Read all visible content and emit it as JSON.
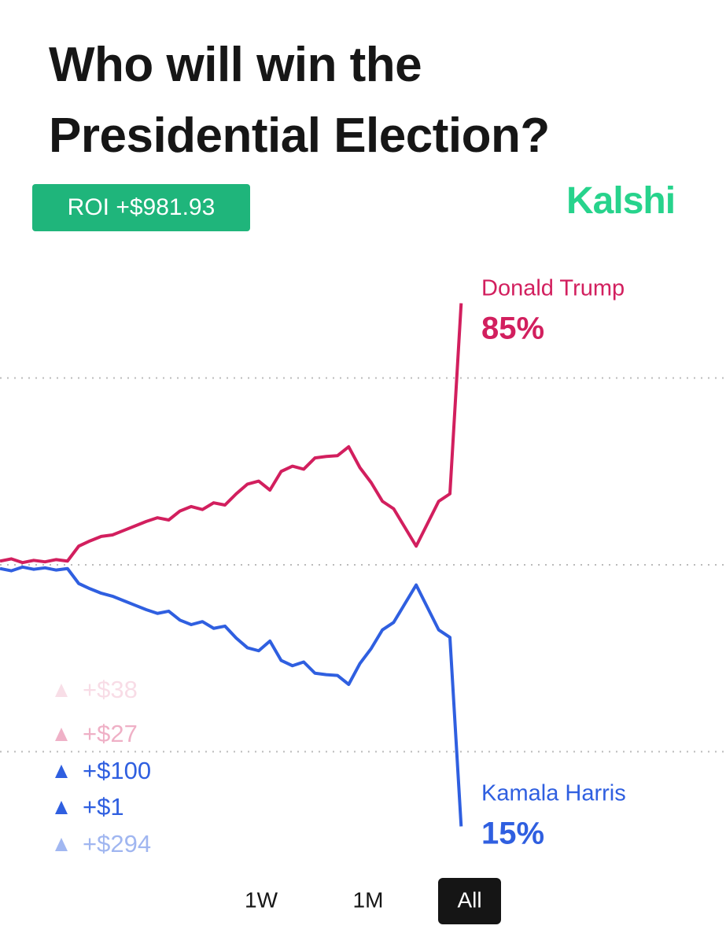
{
  "header": {
    "title": "Who will win the Presidential Election?",
    "badge": "ROI +$981.93",
    "brand": "Kalshi"
  },
  "chart_data": {
    "type": "line",
    "ylim": [
      10,
      90
    ],
    "gridlines": [
      25,
      50,
      75
    ],
    "grid": true,
    "series": [
      {
        "name": "Donald Trump",
        "color": "#d21f5e",
        "values": [
          50.5,
          50.8,
          50.3,
          50.6,
          50.4,
          50.7,
          50.5,
          52.5,
          53.2,
          53.8,
          54.0,
          54.6,
          55.2,
          55.8,
          56.3,
          56.0,
          57.2,
          57.8,
          57.4,
          58.3,
          58.0,
          59.5,
          60.8,
          61.2,
          60.0,
          62.5,
          63.2,
          62.8,
          64.3,
          64.5,
          64.6,
          65.8,
          63.0,
          61.0,
          58.5,
          57.5,
          55.0,
          52.5,
          55.5,
          58.5,
          59.5,
          85
        ],
        "value_labels": [
          null,
          null,
          null,
          null,
          null,
          null,
          null,
          null,
          null,
          null,
          null,
          null,
          null,
          null,
          null,
          null,
          null,
          null,
          null,
          null,
          null,
          null,
          null,
          null,
          null,
          null,
          null,
          null,
          null,
          null,
          null,
          null,
          null,
          null,
          null,
          null,
          null,
          null,
          null,
          null,
          null,
          "85%"
        ]
      },
      {
        "name": "Kamala Harris",
        "color": "#2f5fe0",
        "values": [
          49.5,
          49.2,
          49.7,
          49.4,
          49.6,
          49.3,
          49.5,
          47.5,
          46.8,
          46.2,
          45.8,
          45.2,
          44.6,
          44.0,
          43.5,
          43.8,
          42.6,
          42.0,
          42.4,
          41.5,
          41.8,
          40.2,
          38.9,
          38.5,
          39.8,
          37.2,
          36.5,
          37.0,
          35.5,
          35.3,
          35.2,
          34.0,
          36.8,
          38.8,
          41.3,
          42.3,
          44.8,
          47.3,
          44.3,
          41.3,
          40.3,
          15
        ],
        "value_labels": [
          null,
          null,
          null,
          null,
          null,
          null,
          null,
          null,
          null,
          null,
          null,
          null,
          null,
          null,
          null,
          null,
          null,
          null,
          null,
          null,
          null,
          null,
          null,
          null,
          null,
          null,
          null,
          null,
          null,
          null,
          null,
          null,
          null,
          null,
          null,
          null,
          null,
          null,
          null,
          null,
          null,
          "15%"
        ]
      }
    ]
  },
  "trades": [
    {
      "amount": "+$38",
      "color": "#d21f5e",
      "opacity": 0.15
    },
    {
      "amount": "+$27",
      "color": "#d21f5e",
      "opacity": 0.35
    },
    {
      "amount": "+$100",
      "color": "#2f5fe0",
      "opacity": 1
    },
    {
      "amount": "+$1",
      "color": "#2f5fe0",
      "opacity": 1
    },
    {
      "amount": "+$294",
      "color": "#2f5fe0",
      "opacity": 0.45
    }
  ],
  "ranges": {
    "options": [
      "1W",
      "1M",
      "All"
    ],
    "selected": 2
  }
}
